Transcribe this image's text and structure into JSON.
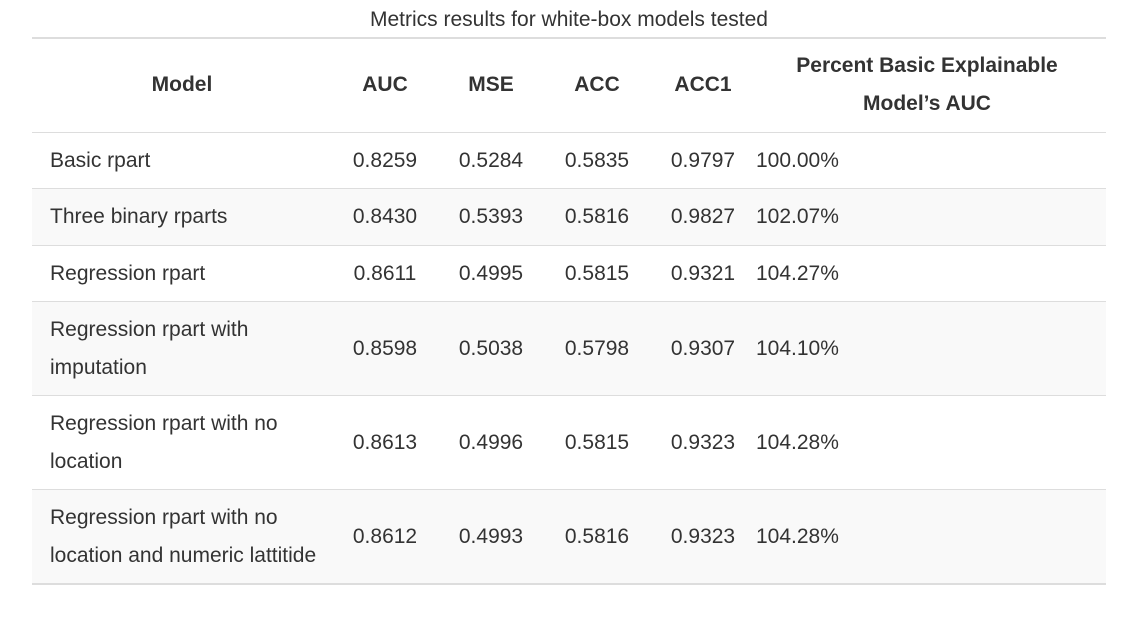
{
  "caption": "Metrics results for white-box models tested",
  "columns": {
    "model": "Model",
    "auc": "AUC",
    "mse": "MSE",
    "acc": "ACC",
    "acc1": "ACC1",
    "pct": "Percent Basic Explainable Model’s AUC"
  },
  "rows": [
    {
      "model": "Basic rpart",
      "auc": "0.8259",
      "mse": "0.5284",
      "acc": "0.5835",
      "acc1": "0.9797",
      "pct": "100.00%"
    },
    {
      "model": "Three binary rparts",
      "auc": "0.8430",
      "mse": "0.5393",
      "acc": "0.5816",
      "acc1": "0.9827",
      "pct": "102.07%"
    },
    {
      "model": "Regression rpart",
      "auc": "0.8611",
      "mse": "0.4995",
      "acc": "0.5815",
      "acc1": "0.9321",
      "pct": "104.27%"
    },
    {
      "model": "Regression rpart with imputation",
      "auc": "0.8598",
      "mse": "0.5038",
      "acc": "0.5798",
      "acc1": "0.9307",
      "pct": "104.10%"
    },
    {
      "model": "Regression rpart with no location",
      "auc": "0.8613",
      "mse": "0.4996",
      "acc": "0.5815",
      "acc1": "0.9323",
      "pct": "104.28%"
    },
    {
      "model": "Regression rpart with no location and numeric lattitide",
      "auc": "0.8612",
      "mse": "0.4993",
      "acc": "0.5816",
      "acc1": "0.9323",
      "pct": "104.28%"
    }
  ]
}
